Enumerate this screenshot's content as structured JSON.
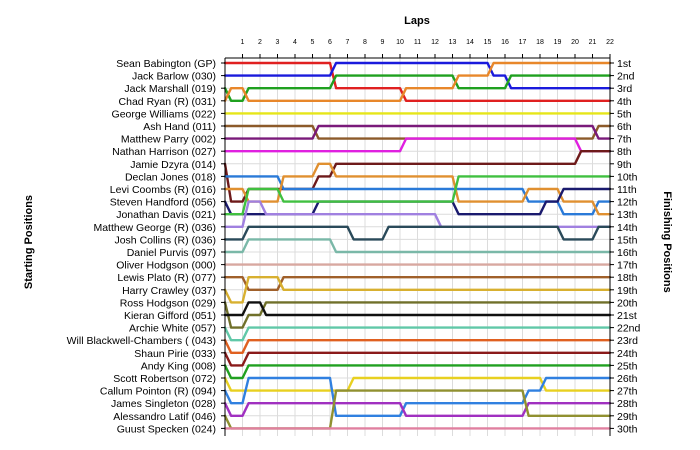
{
  "chart_data": {
    "type": "line",
    "title": "Laps",
    "xlabel": "Laps",
    "ylabel_left": "Starting Positions",
    "ylabel_right": "Finishing Positions",
    "x": [
      1,
      2,
      3,
      4,
      5,
      6,
      7,
      8,
      9,
      10,
      11,
      12,
      13,
      14,
      15,
      16,
      17,
      18,
      19,
      20,
      21,
      22
    ],
    "grid": true,
    "starting_order": [
      "Sean Babington (GP)",
      "Jack Barlow (030)",
      "Jack Marshall (019)",
      "Chad Ryan (R) (031)",
      "George Williams (022)",
      "Ash Hand (011)",
      "Matthew Parry (002)",
      "Nathan Harrison (027)",
      "Jamie Dzyra (014)",
      "Declan Jones (018)",
      "Levi Coombs  (R) (016)",
      "Steven Handford (056)",
      "Jonathan Davis (021)",
      "Matthew George (R) (036)",
      "Josh Collins (R) (036)",
      "Daniel Purvis (097)",
      "Oliver Hodgson (000)",
      "Lewis Plato (R) (077)",
      "Harry Crawley (037)",
      "Ross Hodgson (029)",
      "Kieran Gifford (051)",
      "Archie White (057)",
      "Will Blackwell-Chambers ( (043)",
      "Shaun Pirie (033)",
      "Andy King (008)",
      "Scott Robertson (072)",
      "Callum Pointon  (R) (094)",
      "James Singleton (028)",
      "Alessandro Latif (046)",
      "Guust Specken (024)"
    ],
    "finishing_positions": [
      "1st",
      "2nd",
      "3rd",
      "4th",
      "5th",
      "6th",
      "7th",
      "8th",
      "9th",
      "10th",
      "11th",
      "12th",
      "13th",
      "14th",
      "15th",
      "16th",
      "17th",
      "18th",
      "19th",
      "20th",
      "21st",
      "22nd",
      "23rd",
      "24th",
      "25th",
      "26th",
      "27th",
      "28th",
      "29th",
      "30th"
    ],
    "series": [
      {
        "color": "#e02020",
        "start": 1,
        "values": [
          1,
          1,
          1,
          1,
          1,
          1,
          3,
          3,
          3,
          3,
          4,
          4,
          4,
          4,
          4,
          4,
          4,
          4,
          4,
          4,
          4,
          4
        ]
      },
      {
        "color": "#1a1adc",
        "start": 2,
        "values": [
          2,
          2,
          2,
          2,
          2,
          2,
          1,
          1,
          1,
          1,
          1,
          1,
          1,
          1,
          1,
          2,
          3,
          3,
          3,
          3,
          3,
          3
        ]
      },
      {
        "color": "#1fa01f",
        "start": 3,
        "values": [
          4,
          3,
          3,
          3,
          3,
          3,
          2,
          2,
          2,
          2,
          2,
          2,
          2,
          3,
          3,
          3,
          2,
          2,
          2,
          2,
          2,
          2
        ]
      },
      {
        "color": "#e8872a",
        "start": 4,
        "values": [
          3,
          4,
          4,
          4,
          4,
          4,
          4,
          4,
          4,
          4,
          3,
          3,
          3,
          2,
          2,
          1,
          1,
          1,
          1,
          1,
          1,
          1
        ]
      },
      {
        "color": "#e6e619",
        "start": 5,
        "values": [
          5,
          5,
          5,
          5,
          5,
          5,
          5,
          5,
          5,
          5,
          5,
          5,
          5,
          5,
          5,
          5,
          5,
          5,
          5,
          5,
          5,
          5
        ]
      },
      {
        "color": "#8c5a2a",
        "start": 6,
        "values": [
          6,
          6,
          6,
          6,
          6,
          7,
          7,
          7,
          7,
          7,
          7,
          7,
          7,
          7,
          7,
          7,
          7,
          7,
          7,
          7,
          7,
          6
        ]
      },
      {
        "color": "#7a1a7a",
        "start": 7,
        "values": [
          7,
          7,
          7,
          7,
          7,
          6,
          6,
          6,
          6,
          6,
          6,
          6,
          6,
          6,
          6,
          6,
          6,
          6,
          6,
          6,
          6,
          7
        ]
      },
      {
        "color": "#e020e0",
        "start": 8,
        "values": [
          8,
          8,
          8,
          8,
          8,
          8,
          8,
          8,
          8,
          8,
          7,
          7,
          7,
          7,
          7,
          7,
          7,
          7,
          7,
          7,
          8,
          8
        ]
      },
      {
        "color": "#6e1a1a",
        "start": 9,
        "values": [
          12,
          11,
          11,
          11,
          11,
          10,
          9,
          9,
          9,
          9,
          9,
          9,
          9,
          9,
          9,
          9,
          9,
          9,
          9,
          9,
          8,
          8
        ]
      },
      {
        "color": "#2a7ad8",
        "start": 10,
        "values": [
          10,
          10,
          10,
          11,
          11,
          11,
          11,
          11,
          11,
          11,
          11,
          11,
          11,
          11,
          11,
          11,
          11,
          12,
          12,
          13,
          13,
          12
        ]
      },
      {
        "color": "#e09030",
        "start": 11,
        "values": [
          11,
          12,
          12,
          10,
          10,
          9,
          10,
          10,
          10,
          10,
          10,
          10,
          10,
          12,
          12,
          12,
          12,
          11,
          11,
          12,
          12,
          13
        ]
      },
      {
        "color": "#1a1a6e",
        "start": 12,
        "values": [
          13,
          13,
          13,
          13,
          13,
          12,
          12,
          12,
          12,
          12,
          12,
          12,
          12,
          13,
          13,
          13,
          13,
          13,
          12,
          11,
          11,
          11
        ]
      },
      {
        "color": "#40c040",
        "start": 13,
        "values": [
          13,
          11,
          11,
          12,
          12,
          12,
          12,
          12,
          12,
          12,
          12,
          12,
          12,
          10,
          10,
          10,
          10,
          10,
          10,
          10,
          10,
          10
        ]
      },
      {
        "color": "#a080e0",
        "start": 14,
        "values": [
          14,
          12,
          13,
          13,
          13,
          13,
          13,
          13,
          13,
          13,
          13,
          13,
          14,
          14,
          14,
          14,
          14,
          14,
          14,
          14,
          14,
          14
        ]
      },
      {
        "color": "#2a4a5a",
        "start": 15,
        "values": [
          15,
          14,
          14,
          14,
          14,
          14,
          14,
          15,
          15,
          14,
          14,
          14,
          14,
          14,
          14,
          14,
          14,
          14,
          14,
          15,
          15,
          14
        ]
      },
      {
        "color": "#7ab8a8",
        "start": 16,
        "values": [
          16,
          15,
          15,
          15,
          15,
          15,
          16,
          16,
          16,
          16,
          16,
          16,
          16,
          16,
          16,
          16,
          16,
          16,
          16,
          16,
          16,
          16
        ]
      },
      {
        "color": "#d8a8a0",
        "start": 17,
        "values": [
          17,
          17,
          17,
          17,
          17,
          17,
          17,
          17,
          17,
          17,
          17,
          17,
          17,
          17,
          17,
          17,
          17,
          17,
          17,
          17,
          17,
          17
        ]
      },
      {
        "color": "#a0602a",
        "start": 18,
        "values": [
          18,
          19,
          19,
          18,
          18,
          18,
          18,
          18,
          18,
          18,
          18,
          18,
          18,
          18,
          18,
          18,
          18,
          18,
          18,
          18,
          18,
          18
        ]
      },
      {
        "color": "#d8b030",
        "start": 19,
        "values": [
          20,
          18,
          18,
          19,
          19,
          19,
          19,
          19,
          19,
          19,
          19,
          19,
          19,
          19,
          19,
          19,
          19,
          19,
          19,
          19,
          19,
          19
        ]
      },
      {
        "color": "#70702a",
        "start": 20,
        "values": [
          22,
          21,
          20,
          20,
          20,
          20,
          20,
          20,
          20,
          20,
          20,
          20,
          20,
          20,
          20,
          20,
          20,
          20,
          20,
          20,
          20,
          20
        ]
      },
      {
        "color": "#101010",
        "start": 21,
        "values": [
          21,
          20,
          21,
          21,
          21,
          21,
          21,
          21,
          21,
          21,
          21,
          21,
          21,
          21,
          21,
          21,
          21,
          21,
          21,
          21,
          21,
          21
        ]
      },
      {
        "color": "#60c8a8",
        "start": 22,
        "values": [
          23,
          22,
          22,
          22,
          22,
          22,
          22,
          22,
          22,
          22,
          22,
          22,
          22,
          22,
          22,
          22,
          22,
          22,
          22,
          22,
          22,
          22
        ]
      },
      {
        "color": "#e06020",
        "start": 23,
        "values": [
          24,
          23,
          23,
          23,
          23,
          23,
          23,
          23,
          23,
          23,
          23,
          23,
          23,
          23,
          23,
          23,
          23,
          23,
          23,
          23,
          23,
          23
        ]
      },
      {
        "color": "#8a1a1a",
        "start": 24,
        "values": [
          25,
          24,
          24,
          24,
          24,
          24,
          24,
          24,
          24,
          24,
          24,
          24,
          24,
          24,
          24,
          24,
          24,
          24,
          24,
          24,
          24,
          24
        ]
      },
      {
        "color": "#20a020",
        "start": 25,
        "values": [
          26,
          25,
          25,
          25,
          25,
          25,
          25,
          25,
          25,
          25,
          25,
          25,
          25,
          25,
          25,
          25,
          25,
          25,
          25,
          25,
          25,
          25
        ]
      },
      {
        "color": "#e8d020",
        "start": 26,
        "values": [
          27,
          27,
          27,
          27,
          27,
          27,
          27,
          26,
          26,
          26,
          26,
          26,
          26,
          26,
          26,
          26,
          26,
          26,
          27,
          27,
          27,
          27
        ]
      },
      {
        "color": "#3080e0",
        "start": 27,
        "values": [
          28,
          26,
          26,
          26,
          26,
          26,
          29,
          29,
          29,
          29,
          28,
          28,
          28,
          28,
          28,
          28,
          28,
          27,
          26,
          26,
          26,
          26
        ]
      },
      {
        "color": "#a030c0",
        "start": 28,
        "values": [
          29,
          28,
          28,
          28,
          28,
          28,
          28,
          28,
          28,
          28,
          29,
          29,
          29,
          29,
          29,
          29,
          29,
          28,
          28,
          28,
          28,
          28
        ]
      },
      {
        "color": "#909030",
        "start": 29,
        "values": [
          30,
          30,
          30,
          30,
          30,
          30,
          27,
          27,
          27,
          27,
          27,
          27,
          27,
          27,
          27,
          27,
          27,
          29,
          29,
          29,
          29,
          29
        ]
      },
      {
        "color": "#e080a0",
        "start": 30,
        "values": [
          30,
          30,
          30,
          30,
          30,
          30,
          30,
          30,
          30,
          30,
          30,
          30,
          30,
          30,
          30,
          30,
          30,
          30,
          30,
          30,
          30,
          30
        ]
      }
    ]
  }
}
